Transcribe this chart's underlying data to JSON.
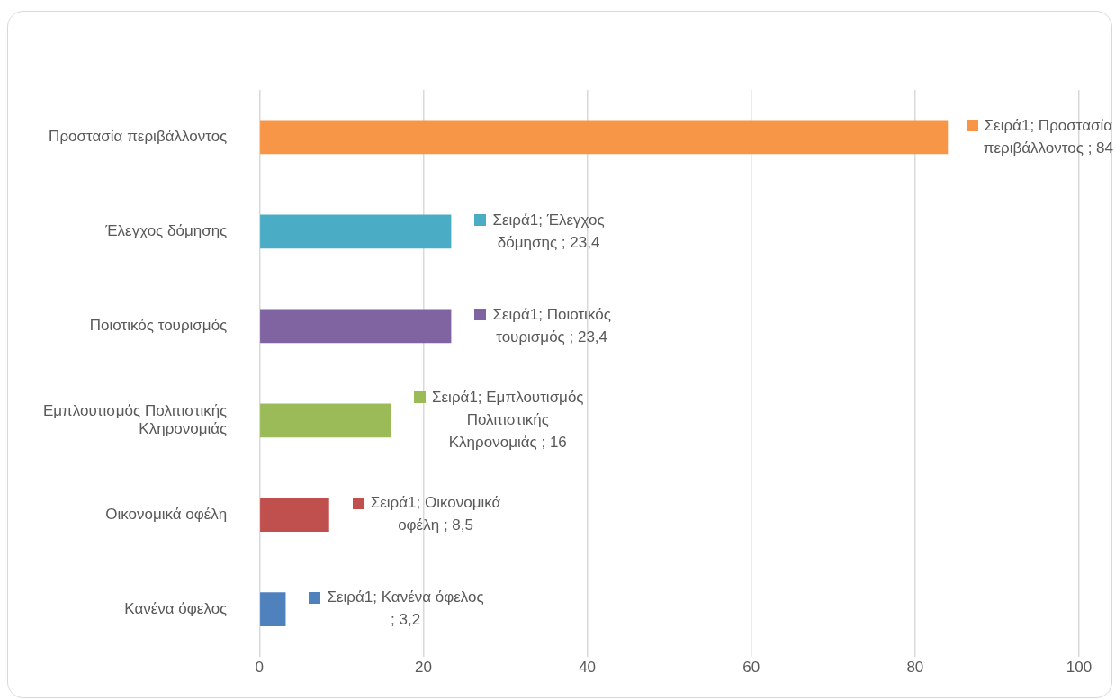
{
  "chart_data": {
    "type": "bar",
    "orientation": "horizontal",
    "categories": [
      "Προστασία περιβάλλοντος",
      "Έλεγχος δόμησης",
      "Ποιοτικός τουρισμός",
      "Εμπλουτισμός Πολιτιστικής Κληρονομιάς",
      "Οικονομικά οφέλη",
      "Κανένα όφελος"
    ],
    "values": [
      84,
      23.4,
      23.4,
      16,
      8.5,
      3.2
    ],
    "colors": [
      "#f79646",
      "#4bacc6",
      "#8064a2",
      "#9bbb59",
      "#c0504d",
      "#4f81bd"
    ],
    "value_labels": [
      "Σειρά1; Προστασία περιβάλλοντος ; 84",
      "Σειρά1; Έλεγχος δόμησης ; 23,4",
      "Σειρά1; Ποιοτικός τουρισμός ; 23,4",
      "Σειρά1; Εμπλουτισμός Πολιτιστικής Κληρονομιάς ; 16",
      "Σειρά1; Οικονομικά οφέλη ; 8,5",
      "Σειρά1; Κανένα όφελος ; 3,2"
    ],
    "xlim": [
      0,
      100
    ],
    "xticks": [
      0,
      20,
      40,
      60,
      80,
      100
    ],
    "grid": "x",
    "legend": false
  }
}
